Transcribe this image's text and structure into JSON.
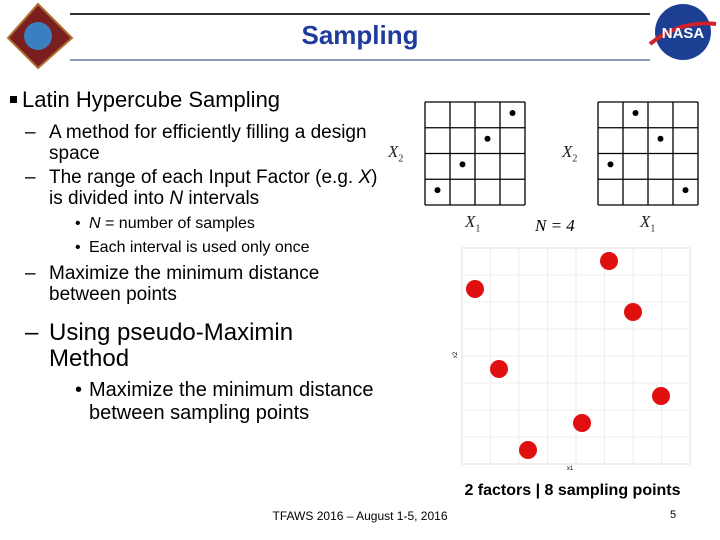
{
  "header": {
    "title": "Sampling",
    "logo_text": "NASA"
  },
  "body": {
    "heading": "Latin Hypercube Sampling",
    "items": [
      {
        "parts": [
          "A method for efficiently filling a design space"
        ]
      },
      {
        "parts": [
          "The range of each Input Factor (e.g. ",
          "X",
          ") is divided into ",
          "N",
          " intervals"
        ]
      },
      {
        "sub": [
          {
            "parts": [
              "N",
              " = number of samples"
            ]
          },
          {
            "parts": [
              "Each interval is used only once"
            ]
          }
        ]
      },
      {
        "parts": [
          "Maximize the minimum distance between points"
        ]
      },
      {
        "parts": [
          "Using pseudo-Maximin Method"
        ]
      },
      {
        "sub": [
          {
            "parts": [
              "Maximize the minimum distance between sampling points"
            ]
          }
        ]
      }
    ]
  },
  "figure": {
    "grid_x_label": "X",
    "grid_y_label": "X",
    "x_sub": "1",
    "y_sub": "2",
    "n_label": "N = 4",
    "plot_x_label": "x1",
    "plot_y_label": "x2",
    "caption": "2 factors | 8 sampling points"
  },
  "footer": {
    "text": "TFAWS 2016 – August 1-5, 2016",
    "page": "5"
  }
}
